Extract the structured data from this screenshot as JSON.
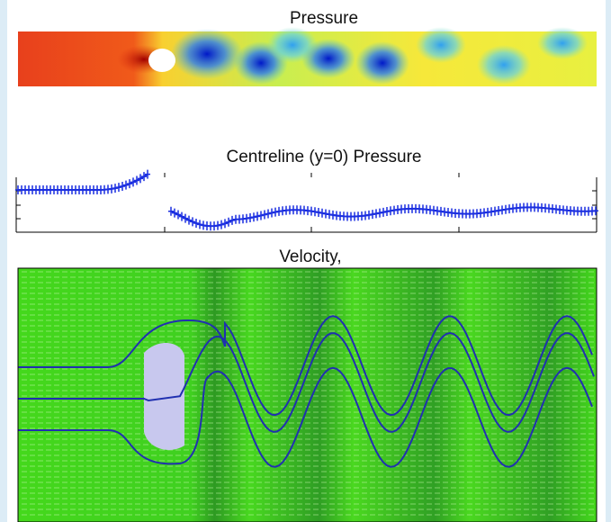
{
  "panels": [
    {
      "title": "Pressure"
    },
    {
      "title": "Centreline (y=0) Pressure"
    },
    {
      "title": "Velocity,"
    }
  ]
}
